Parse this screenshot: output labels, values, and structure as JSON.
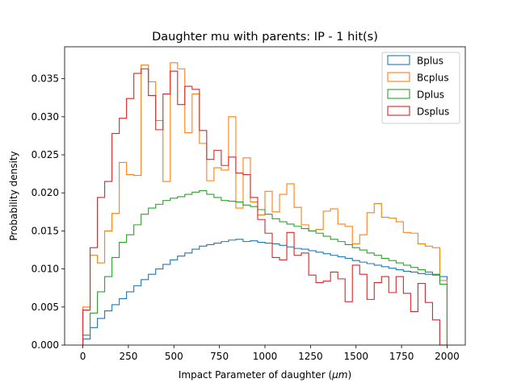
{
  "chart_data": {
    "type": "histogram",
    "title": "Daughter mu with parents: IP - 1 hit(s)",
    "xlabel_prefix": "Impact Parameter of daughter (",
    "xlabel_unit": "μm",
    "xlabel_suffix": ")",
    "ylabel": "Probability density",
    "xlim": [
      -100,
      2100
    ],
    "ylim": [
      0,
      0.0392
    ],
    "x_ticks": [
      0,
      250,
      500,
      750,
      1000,
      1250,
      1500,
      1750,
      2000
    ],
    "x_tick_labels": [
      "0",
      "250",
      "500",
      "750",
      "1000",
      "1250",
      "1500",
      "1750",
      "2000"
    ],
    "y_ticks": [
      0,
      0.005,
      0.01,
      0.015,
      0.02,
      0.025,
      0.03,
      0.035
    ],
    "y_tick_labels": [
      "0.000",
      "0.005",
      "0.010",
      "0.015",
      "0.020",
      "0.025",
      "0.030",
      "0.035"
    ],
    "bin_edges": [
      0,
      40,
      80,
      120,
      160,
      200,
      240,
      280,
      320,
      360,
      400,
      440,
      480,
      520,
      560,
      600,
      640,
      680,
      720,
      760,
      800,
      840,
      880,
      920,
      960,
      1000,
      1040,
      1080,
      1120,
      1160,
      1200,
      1240,
      1280,
      1320,
      1360,
      1400,
      1440,
      1480,
      1520,
      1560,
      1600,
      1640,
      1680,
      1720,
      1760,
      1800,
      1840,
      1880,
      1920,
      1960,
      2000
    ],
    "legend_position": "top-right",
    "grid": false,
    "series": [
      {
        "name": "Bplus",
        "color": "#1f77b4",
        "values": [
          0.0008,
          0.0023,
          0.0035,
          0.0045,
          0.0053,
          0.0061,
          0.007,
          0.0078,
          0.0086,
          0.0093,
          0.01,
          0.0106,
          0.0112,
          0.0117,
          0.0121,
          0.0126,
          0.013,
          0.0132,
          0.0134,
          0.0136,
          0.0138,
          0.0139,
          0.0136,
          0.0137,
          0.0135,
          0.0134,
          0.0133,
          0.0131,
          0.0129,
          0.0127,
          0.0126,
          0.0124,
          0.0122,
          0.012,
          0.0118,
          0.0116,
          0.0114,
          0.0111,
          0.0109,
          0.0107,
          0.0105,
          0.0103,
          0.0101,
          0.0099,
          0.0097,
          0.0096,
          0.0094,
          0.0093,
          0.0092,
          0.009
        ]
      },
      {
        "name": "Bcplus",
        "color": "#ff7f0e",
        "values": [
          0.005,
          0.0118,
          0.0108,
          0.015,
          0.0173,
          0.024,
          0.0224,
          0.0223,
          0.0368,
          0.0346,
          0.0295,
          0.0215,
          0.0371,
          0.0363,
          0.0279,
          0.033,
          0.0265,
          0.0216,
          0.0233,
          0.023,
          0.03,
          0.018,
          0.0246,
          0.0188,
          0.0171,
          0.0202,
          0.0175,
          0.0198,
          0.0212,
          0.0181,
          0.0158,
          0.015,
          0.0152,
          0.0176,
          0.0179,
          0.0159,
          0.0156,
          0.0133,
          0.0145,
          0.0174,
          0.0186,
          0.0168,
          0.0167,
          0.0162,
          0.0148,
          0.0147,
          0.0133,
          0.013,
          0.0128,
          0.0085
        ]
      },
      {
        "name": "Dplus",
        "color": "#2ca02c",
        "values": [
          0.0013,
          0.0042,
          0.007,
          0.009,
          0.0115,
          0.0135,
          0.0145,
          0.0158,
          0.0172,
          0.018,
          0.0185,
          0.019,
          0.0193,
          0.0195,
          0.0198,
          0.0201,
          0.0203,
          0.0198,
          0.0194,
          0.019,
          0.0189,
          0.0188,
          0.0184,
          0.0182,
          0.0178,
          0.0172,
          0.0166,
          0.0162,
          0.0159,
          0.0156,
          0.0153,
          0.015,
          0.0147,
          0.0143,
          0.0139,
          0.0136,
          0.0132,
          0.0128,
          0.0125,
          0.0121,
          0.0118,
          0.0114,
          0.0111,
          0.0108,
          0.0105,
          0.0102,
          0.0099,
          0.0096,
          0.0093,
          0.008
        ]
      },
      {
        "name": "Dsplus",
        "color": "#d62728",
        "values": [
          0.0046,
          0.0128,
          0.0194,
          0.0215,
          0.0278,
          0.0298,
          0.0324,
          0.0357,
          0.0363,
          0.0328,
          0.0283,
          0.033,
          0.036,
          0.0316,
          0.034,
          0.0336,
          0.0282,
          0.0244,
          0.0256,
          0.0236,
          0.0247,
          0.0226,
          0.0224,
          0.0194,
          0.0165,
          0.0147,
          0.0115,
          0.0112,
          0.0148,
          0.0118,
          0.0121,
          0.0092,
          0.0082,
          0.0084,
          0.0096,
          0.0087,
          0.0057,
          0.0105,
          0.0093,
          0.006,
          0.0082,
          0.009,
          0.0069,
          0.009,
          0.0068,
          0.0044,
          0.0081,
          0.0056,
          0.0033,
          0.0
        ]
      }
    ]
  }
}
